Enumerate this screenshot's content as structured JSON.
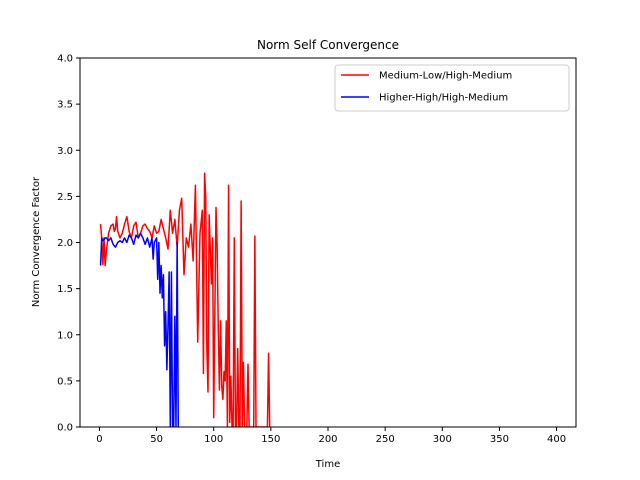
{
  "chart_data": {
    "type": "line",
    "title": "Norm Self Convergence",
    "xlabel": "Time",
    "ylabel": "Norm Convergence Factor",
    "xlim": [
      -17,
      417
    ],
    "ylim": [
      0,
      4.0
    ],
    "xticks": [
      0,
      50,
      100,
      150,
      200,
      250,
      300,
      350,
      400
    ],
    "yticks": [
      0.0,
      0.5,
      1.0,
      1.5,
      2.0,
      2.5,
      3.0,
      3.5,
      4.0
    ],
    "xtick_labels": [
      "0",
      "50",
      "100",
      "150",
      "200",
      "250",
      "300",
      "350",
      "400"
    ],
    "ytick_labels": [
      "0.0",
      "0.5",
      "1.0",
      "1.5",
      "2.0",
      "2.5",
      "3.0",
      "3.5",
      "4.0"
    ],
    "grid": false,
    "legend_position": "top-right",
    "series": [
      {
        "name": "Medium-Low/High-Medium",
        "color": "#ff0000",
        "points": [
          [
            1,
            2.2
          ],
          [
            2,
            2.05
          ],
          [
            3,
            1.76
          ],
          [
            4,
            2.05
          ],
          [
            5,
            1.75
          ],
          [
            6,
            1.9
          ],
          [
            8,
            2.1
          ],
          [
            10,
            2.18
          ],
          [
            12,
            2.2
          ],
          [
            13,
            2.12
          ],
          [
            14,
            2.15
          ],
          [
            15,
            2.28
          ],
          [
            16,
            2.12
          ],
          [
            18,
            2.05
          ],
          [
            20,
            2.1
          ],
          [
            22,
            2.2
          ],
          [
            24,
            2.28
          ],
          [
            26,
            2.12
          ],
          [
            28,
            2.05
          ],
          [
            30,
            2.18
          ],
          [
            32,
            2.22
          ],
          [
            34,
            2.05
          ],
          [
            36,
            2.1
          ],
          [
            38,
            2.18
          ],
          [
            40,
            2.2
          ],
          [
            42,
            2.15
          ],
          [
            44,
            2.12
          ],
          [
            46,
            2.05
          ],
          [
            48,
            2.18
          ],
          [
            50,
            2.1
          ],
          [
            52,
            2.12
          ],
          [
            54,
            2.25
          ],
          [
            56,
            2.15
          ],
          [
            58,
            2.05
          ],
          [
            60,
            1.93
          ],
          [
            62,
            2.35
          ],
          [
            64,
            2.1
          ],
          [
            66,
            2.25
          ],
          [
            68,
            1.95
          ],
          [
            70,
            2.35
          ],
          [
            72,
            2.48
          ],
          [
            74,
            1.65
          ],
          [
            76,
            2.05
          ],
          [
            78,
            1.95
          ],
          [
            80,
            2.2
          ],
          [
            82,
            1.8
          ],
          [
            84,
            2.62
          ],
          [
            86,
            0.92
          ],
          [
            88,
            2.1
          ],
          [
            90,
            2.35
          ],
          [
            91,
            0.58
          ],
          [
            92,
            2.75
          ],
          [
            93,
            2.5
          ],
          [
            94,
            0.85
          ],
          [
            95,
            0.38
          ],
          [
            96,
            2.3
          ],
          [
            98,
            1.55
          ],
          [
            99,
            2.05
          ],
          [
            100,
            0.1
          ],
          [
            102,
            2.38
          ],
          [
            103,
            1.95
          ],
          [
            104,
            1.05
          ],
          [
            105,
            0.4
          ],
          [
            106,
            1.15
          ],
          [
            107,
            0.45
          ],
          [
            108,
            0.3
          ],
          [
            109,
            0.6
          ],
          [
            110,
            0.5
          ],
          [
            111,
            1.15
          ],
          [
            112,
            0.0
          ],
          [
            113,
            2.62
          ],
          [
            114,
            0.05
          ],
          [
            115,
            0.55
          ],
          [
            116,
            0.0
          ],
          [
            117,
            0.0
          ],
          [
            118,
            2.05
          ],
          [
            119,
            0.0
          ],
          [
            120,
            0.0
          ],
          [
            121,
            0.85
          ],
          [
            122,
            0.0
          ],
          [
            123,
            0.0
          ],
          [
            124,
            2.45
          ],
          [
            125,
            0.0
          ],
          [
            126,
            0.7
          ],
          [
            127,
            0.0
          ],
          [
            128,
            0.0
          ],
          [
            129,
            0.0
          ],
          [
            130,
            0.68
          ],
          [
            131,
            0.0
          ],
          [
            132,
            0.0
          ],
          [
            133,
            0.0
          ],
          [
            134,
            0.0
          ],
          [
            135,
            0.0
          ],
          [
            136,
            2.07
          ],
          [
            137,
            0.0
          ],
          [
            138,
            0.0
          ],
          [
            140,
            0.0
          ],
          [
            142,
            0.0
          ],
          [
            144,
            0.0
          ],
          [
            146,
            0.0
          ],
          [
            147,
            0.0
          ],
          [
            148,
            0.8
          ],
          [
            149,
            0.0
          ]
        ]
      },
      {
        "name": "Higher-High/High-Medium",
        "color": "#0000ff",
        "points": [
          [
            1,
            1.75
          ],
          [
            2,
            2.05
          ],
          [
            3,
            2.02
          ],
          [
            4,
            2.03
          ],
          [
            5,
            2.05
          ],
          [
            6,
            2.05
          ],
          [
            8,
            2.02
          ],
          [
            10,
            2.05
          ],
          [
            12,
            1.98
          ],
          [
            14,
            1.95
          ],
          [
            16,
            2.0
          ],
          [
            18,
            2.02
          ],
          [
            20,
            2.0
          ],
          [
            22,
            2.05
          ],
          [
            24,
            2.0
          ],
          [
            26,
            2.08
          ],
          [
            28,
            2.05
          ],
          [
            30,
            1.98
          ],
          [
            32,
            2.08
          ],
          [
            34,
            2.05
          ],
          [
            36,
            2.1
          ],
          [
            38,
            2.05
          ],
          [
            40,
            1.98
          ],
          [
            42,
            2.05
          ],
          [
            44,
            1.95
          ],
          [
            46,
            2.05
          ],
          [
            47,
            1.82
          ],
          [
            48,
            2.0
          ],
          [
            50,
            2.05
          ],
          [
            51,
            1.6
          ],
          [
            52,
            2.0
          ],
          [
            53,
            1.45
          ],
          [
            54,
            1.75
          ],
          [
            55,
            1.4
          ],
          [
            56,
            1.65
          ],
          [
            57,
            0.88
          ],
          [
            58,
            1.25
          ],
          [
            59,
            0.62
          ],
          [
            60,
            1.1
          ],
          [
            61,
            1.68
          ],
          [
            62,
            0.0
          ],
          [
            63,
            1.68
          ],
          [
            64,
            0.0
          ],
          [
            65,
            0.0
          ],
          [
            66,
            1.2
          ],
          [
            67,
            0.0
          ],
          [
            68,
            2.0
          ],
          [
            69,
            0.0
          ]
        ]
      }
    ]
  }
}
